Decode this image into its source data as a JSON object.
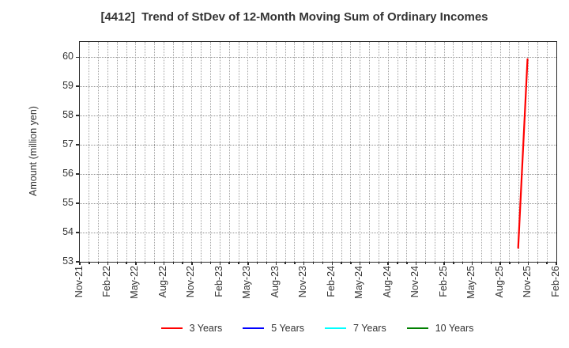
{
  "chart_data": {
    "type": "line",
    "title": "[4412]  Trend of StDev of 12-Month Moving Sum of Ordinary Incomes",
    "ylabel": "Amount (million yen)",
    "x_axis": {
      "tick_labels": [
        "Nov-21",
        "Feb-22",
        "May-22",
        "Aug-22",
        "Nov-22",
        "Feb-23",
        "May-23",
        "Aug-23",
        "Nov-23",
        "Feb-24",
        "May-24",
        "Aug-24",
        "Nov-24",
        "Feb-25",
        "May-25",
        "Aug-25",
        "Nov-25",
        "Feb-26"
      ],
      "months_total": 51,
      "tick_every_months": 3,
      "minor_grid": "monthly"
    },
    "y_axis": {
      "min": 53,
      "max": 60.52,
      "ticks": [
        53,
        54,
        55,
        56,
        57,
        58,
        59,
        60
      ]
    },
    "series": [
      {
        "name": "3 Years",
        "color": "#ff0000",
        "points": [
          {
            "month": "Oct-25",
            "month_index": 47,
            "value": 53.45
          },
          {
            "month": "Nov-25",
            "month_index": 48,
            "value": 59.9
          }
        ]
      },
      {
        "name": "5 Years",
        "color": "#0000ff",
        "points": []
      },
      {
        "name": "7 Years",
        "color": "#00ffff",
        "points": []
      },
      {
        "name": "10 Years",
        "color": "#008000",
        "points": []
      }
    ],
    "legend": {
      "position": "bottom",
      "entries": [
        "3 Years",
        "5 Years",
        "7 Years",
        "10 Years"
      ]
    },
    "grid": true,
    "colors": {
      "text": "#333333",
      "axis_border": "#2b2b2b",
      "grid": "#a3a3a3"
    }
  }
}
